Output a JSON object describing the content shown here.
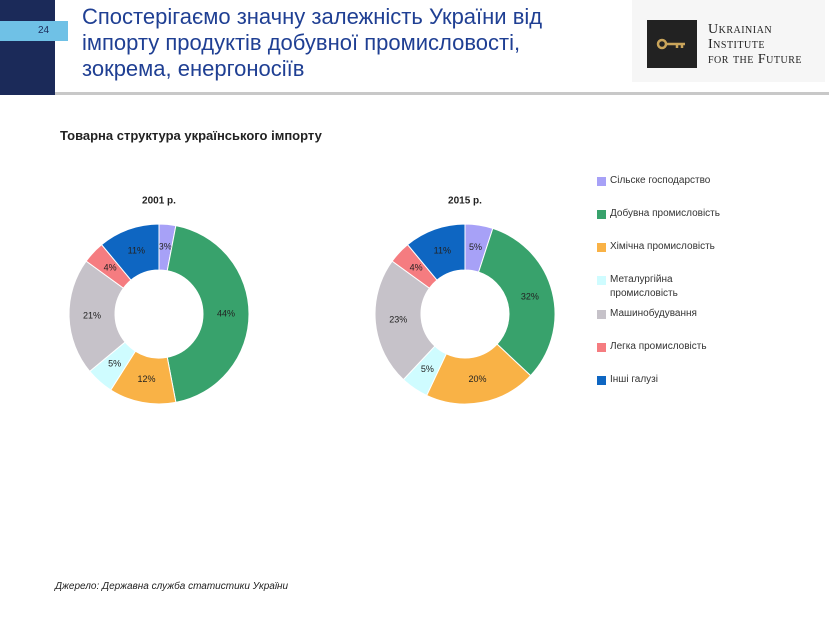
{
  "page_number": "24",
  "title": [
    "Спостерігаємо значну залежність України від",
    "імпорту продуктів добувної промисловості,",
    "зокрема, енергоносіїв"
  ],
  "logo": [
    "Ukrainian",
    "Institute",
    "for the Future"
  ],
  "section_title": "Товарна структура українського імпорту",
  "source": "Джерело: Державна служба статистики України",
  "chart_data": [
    {
      "type": "pie",
      "title": "2001 р.",
      "categories": [
        "Сільске господарство",
        "Добувна промисловість",
        "Хімічна промисловість",
        "Металургійна промисловість",
        "Машинобудування",
        "Легка промисловість",
        "Інші галузі"
      ],
      "values": [
        3,
        44,
        12,
        5,
        21,
        4,
        11
      ],
      "value_labels": [
        "3%",
        "44%",
        "12%",
        "5%",
        "21%",
        "4%",
        "11%"
      ],
      "colors": [
        "#a7a1f7",
        "#38a26c",
        "#f9b246",
        "#cffcff",
        "#c6c2c9",
        "#f57c80",
        "#0e66c2"
      ]
    },
    {
      "type": "pie",
      "title": "2015 р.",
      "categories": [
        "Сільске господарство",
        "Добувна промисловість",
        "Хімічна промисловість",
        "Металургійна промисловість",
        "Машинобудування",
        "Легка промисловість",
        "Інші галузі"
      ],
      "values": [
        5,
        32,
        20,
        5,
        23,
        4,
        11
      ],
      "value_labels": [
        "5%",
        "32%",
        "20%",
        "5%",
        "23%",
        "4%",
        "11%"
      ],
      "colors": [
        "#a7a1f7",
        "#38a26c",
        "#f9b246",
        "#cffcff",
        "#c6c2c9",
        "#f57c80",
        "#0e66c2"
      ]
    }
  ]
}
